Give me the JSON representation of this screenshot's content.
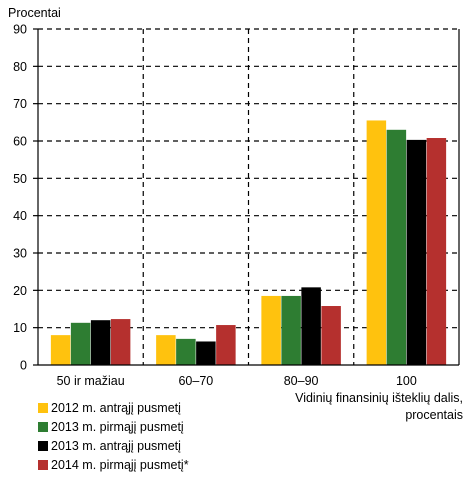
{
  "chart_data": {
    "type": "bar",
    "ylabel": "Procentai",
    "xlabel_lines": [
      "Vidinių finansinių išteklių dalis,",
      "procentais"
    ],
    "ylim": [
      0,
      90
    ],
    "yticks": [
      0,
      10,
      20,
      30,
      40,
      50,
      60,
      70,
      80,
      90
    ],
    "categories": [
      "50 ir mažiau",
      "60–70",
      "80–90",
      "100"
    ],
    "series": [
      {
        "name": "2012 m. antrąjį pusmetį",
        "color": "#FFC20E",
        "values": [
          8,
          8,
          18.5,
          65.5
        ]
      },
      {
        "name": "2013 m. pirmąjį pusmetį",
        "color": "#2E7D32",
        "values": [
          11.3,
          7,
          18.5,
          63
        ]
      },
      {
        "name": "2013 m. antrąjį pusmetį",
        "color": "#000000",
        "values": [
          12,
          6.3,
          20.8,
          60.3
        ]
      },
      {
        "name": "2014 m. pirmąjį pusmetį*",
        "color": "#B5302E",
        "values": [
          12.3,
          10.7,
          15.8,
          60.8
        ]
      }
    ],
    "grid": true,
    "legend_position": "bottom-left"
  }
}
